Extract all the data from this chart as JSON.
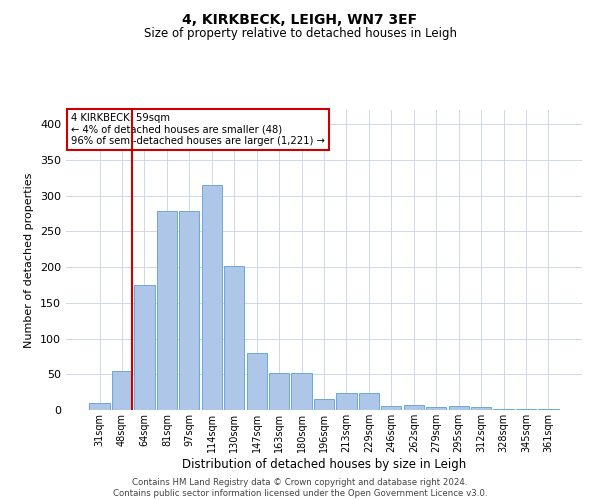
{
  "title": "4, KIRKBECK, LEIGH, WN7 3EF",
  "subtitle": "Size of property relative to detached houses in Leigh",
  "xlabel": "Distribution of detached houses by size in Leigh",
  "ylabel": "Number of detached properties",
  "footer_line1": "Contains HM Land Registry data © Crown copyright and database right 2024.",
  "footer_line2": "Contains public sector information licensed under the Open Government Licence v3.0.",
  "annotation_line1": "4 KIRKBECK: 59sqm",
  "annotation_line2": "← 4% of detached houses are smaller (48)",
  "annotation_line3": "96% of semi-detached houses are larger (1,221) →",
  "bar_color": "#aec6e8",
  "bar_edge_color": "#5a9fd4",
  "marker_line_color": "#cc0000",
  "annotation_box_edge_color": "#cc0000",
  "background_color": "#ffffff",
  "grid_color": "#d0d8e8",
  "categories": [
    "31sqm",
    "48sqm",
    "64sqm",
    "81sqm",
    "97sqm",
    "114sqm",
    "130sqm",
    "147sqm",
    "163sqm",
    "180sqm",
    "196sqm",
    "213sqm",
    "229sqm",
    "246sqm",
    "262sqm",
    "279sqm",
    "295sqm",
    "312sqm",
    "328sqm",
    "345sqm",
    "361sqm"
  ],
  "values": [
    10,
    55,
    175,
    278,
    278,
    315,
    202,
    80,
    52,
    52,
    15,
    24,
    24,
    5,
    7,
    4,
    6,
    4,
    2,
    2,
    2
  ],
  "marker_bin_index": 1,
  "ylim": [
    0,
    420
  ],
  "yticks": [
    0,
    50,
    100,
    150,
    200,
    250,
    300,
    350,
    400
  ]
}
